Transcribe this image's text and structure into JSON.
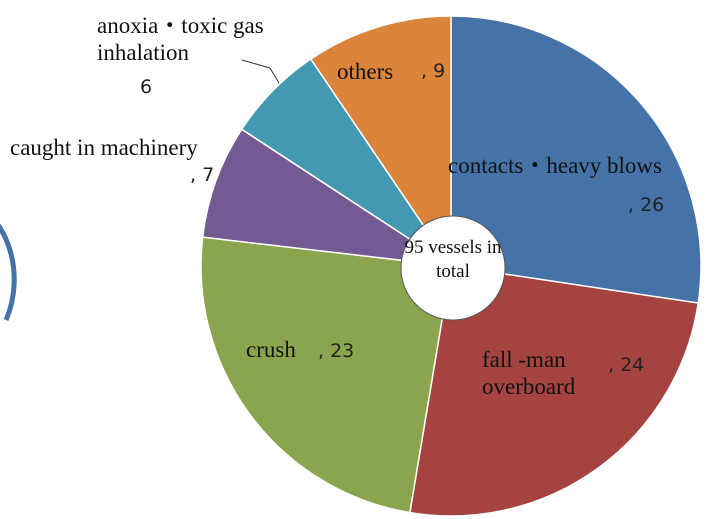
{
  "chart_data": {
    "type": "pie",
    "categories": [
      "contacts・heavy blows",
      "fall -man overboard",
      "crush",
      "caught in machinery",
      "anoxia・toxic gas inhalation",
      "others"
    ],
    "values": [
      26,
      24,
      23,
      7,
      6,
      9
    ],
    "value_labels": [
      ", 26",
      ", 24",
      ", 23",
      ", 7",
      "6",
      ", 9"
    ],
    "colors": [
      "#4572a7",
      "#a4433f",
      "#8ba54f",
      "#735a93",
      "#4399b1",
      "#db843c"
    ],
    "center_label": "95 vessels in total"
  }
}
